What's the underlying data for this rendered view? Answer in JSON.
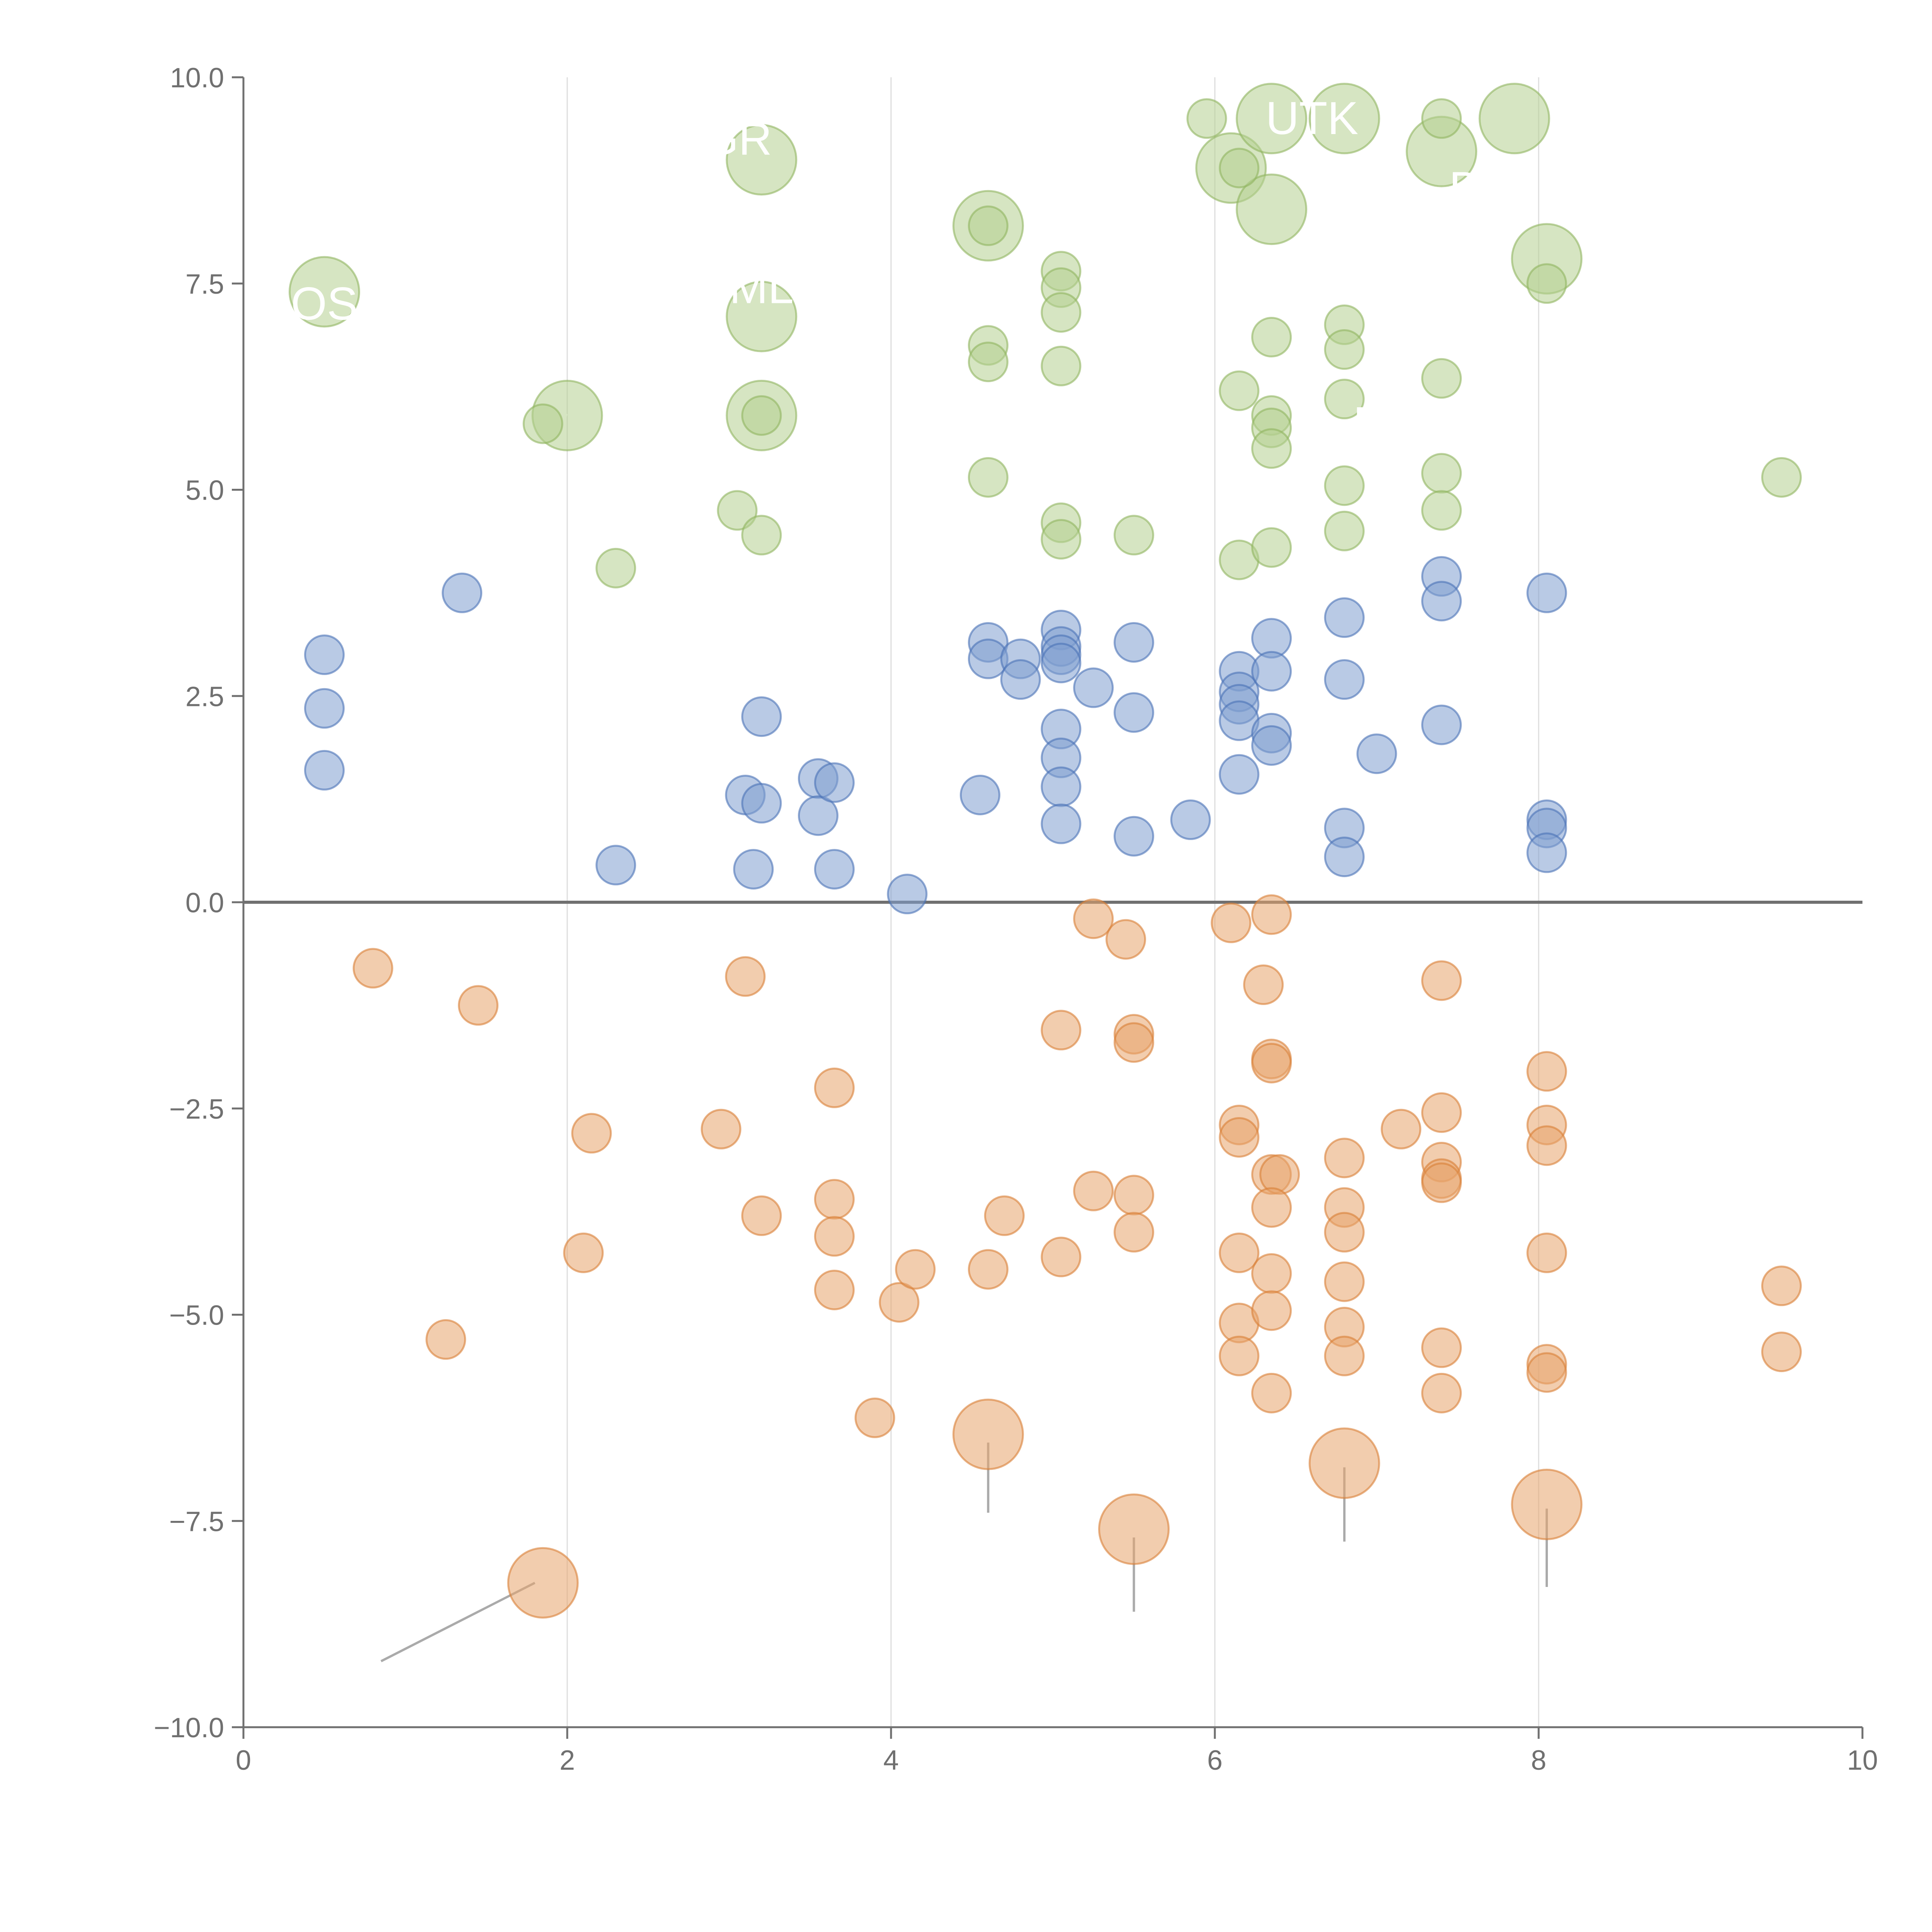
{
  "chart_data": {
    "type": "scatter",
    "title": "",
    "xlabel": "",
    "ylabel": "",
    "xlim": [
      0,
      10
    ],
    "ylim": [
      -10,
      10
    ],
    "xticks": [
      "0",
      "2",
      "4",
      "6",
      "8",
      "10"
    ],
    "yticks": [
      "−10.0",
      "−7.5",
      "−5.0",
      "−2.5",
      "0.0",
      "2.5",
      "5.0",
      "7.5",
      "10.0"
    ],
    "tick_values_x": [
      0,
      2,
      4,
      6,
      8,
      10
    ],
    "tick_values_y": [
      -10,
      -7.5,
      -5,
      -2.5,
      0,
      2.5,
      5,
      7.5,
      10
    ],
    "vertical_gridlines_at": [
      2,
      4,
      6,
      8
    ],
    "zero_line_y": 0,
    "series": [
      {
        "name": "green",
        "color": "#b5cf8f",
        "points": [
          [
            0.5,
            7.4,
            "L"
          ],
          [
            2.0,
            5.9,
            "L"
          ],
          [
            3.2,
            9.0,
            "L"
          ],
          [
            3.2,
            7.1,
            "L"
          ],
          [
            3.2,
            5.9,
            "L"
          ],
          [
            4.6,
            8.2,
            "L"
          ],
          [
            6.1,
            8.9,
            "L"
          ],
          [
            6.35,
            9.5,
            "L"
          ],
          [
            6.35,
            8.4,
            "L"
          ],
          [
            6.8,
            9.5,
            "L"
          ],
          [
            7.4,
            9.1,
            "L"
          ],
          [
            7.85,
            9.5,
            "L"
          ],
          [
            8.05,
            7.8,
            "L"
          ],
          [
            1.85,
            5.8,
            "S"
          ],
          [
            3.05,
            4.75,
            "S"
          ],
          [
            3.2,
            4.45,
            "S"
          ],
          [
            3.2,
            5.9,
            "S"
          ],
          [
            2.3,
            4.05,
            "S"
          ],
          [
            4.6,
            8.2,
            "S"
          ],
          [
            4.6,
            6.75,
            "S"
          ],
          [
            4.6,
            6.55,
            "S"
          ],
          [
            4.6,
            5.15,
            "S"
          ],
          [
            5.05,
            7.65,
            "S"
          ],
          [
            5.05,
            7.45,
            "S"
          ],
          [
            5.05,
            7.15,
            "S"
          ],
          [
            5.05,
            6.5,
            "S"
          ],
          [
            5.05,
            4.6,
            "S"
          ],
          [
            5.05,
            4.4,
            "S"
          ],
          [
            5.5,
            4.45,
            "S"
          ],
          [
            5.95,
            9.5,
            "S"
          ],
          [
            6.15,
            8.9,
            "S"
          ],
          [
            6.15,
            6.2,
            "S"
          ],
          [
            6.15,
            4.15,
            "S"
          ],
          [
            6.35,
            6.85,
            "S"
          ],
          [
            6.35,
            5.9,
            "S"
          ],
          [
            6.35,
            5.75,
            "S"
          ],
          [
            6.35,
            5.5,
            "S"
          ],
          [
            6.35,
            4.3,
            "S"
          ],
          [
            6.8,
            7.0,
            "S"
          ],
          [
            6.8,
            6.7,
            "S"
          ],
          [
            6.8,
            6.1,
            "S"
          ],
          [
            6.8,
            5.05,
            "S"
          ],
          [
            6.8,
            4.5,
            "S"
          ],
          [
            7.4,
            9.5,
            "S"
          ],
          [
            7.4,
            6.35,
            "S"
          ],
          [
            7.4,
            5.2,
            "S"
          ],
          [
            7.4,
            4.75,
            "S"
          ],
          [
            8.05,
            7.5,
            "S"
          ],
          [
            9.5,
            5.15,
            "S"
          ]
        ]
      },
      {
        "name": "blue",
        "color": "#7f9fcf",
        "points": [
          [
            0.5,
            3.0
          ],
          [
            0.5,
            2.35
          ],
          [
            0.5,
            1.6
          ],
          [
            1.35,
            3.75
          ],
          [
            2.3,
            0.45
          ],
          [
            3.1,
            1.3
          ],
          [
            3.15,
            0.4
          ],
          [
            3.2,
            2.25
          ],
          [
            3.2,
            1.2
          ],
          [
            3.55,
            1.5
          ],
          [
            3.55,
            1.05
          ],
          [
            3.65,
            1.45
          ],
          [
            3.65,
            0.4
          ],
          [
            4.1,
            0.1
          ],
          [
            4.55,
            1.3
          ],
          [
            4.6,
            3.15
          ],
          [
            4.6,
            2.95
          ],
          [
            4.8,
            2.95
          ],
          [
            4.8,
            2.7
          ],
          [
            5.05,
            3.3
          ],
          [
            5.05,
            3.1
          ],
          [
            5.05,
            3.0
          ],
          [
            5.05,
            2.9
          ],
          [
            5.05,
            2.1
          ],
          [
            5.05,
            1.75
          ],
          [
            5.05,
            1.4
          ],
          [
            5.05,
            0.95
          ],
          [
            5.25,
            2.6
          ],
          [
            5.5,
            3.15
          ],
          [
            5.5,
            2.3
          ],
          [
            5.5,
            0.8
          ],
          [
            5.85,
            1.0
          ],
          [
            6.15,
            2.8
          ],
          [
            6.15,
            2.55
          ],
          [
            6.15,
            2.4
          ],
          [
            6.15,
            2.2
          ],
          [
            6.15,
            1.55
          ],
          [
            6.35,
            3.2
          ],
          [
            6.35,
            2.8
          ],
          [
            6.35,
            2.05
          ],
          [
            6.35,
            1.9
          ],
          [
            6.8,
            3.45
          ],
          [
            6.8,
            2.7
          ],
          [
            6.8,
            0.9
          ],
          [
            6.8,
            0.55
          ],
          [
            7.0,
            1.8
          ],
          [
            7.4,
            3.95
          ],
          [
            7.4,
            3.65
          ],
          [
            7.4,
            2.15
          ],
          [
            8.05,
            3.75
          ],
          [
            8.05,
            1.0
          ],
          [
            8.05,
            0.9
          ],
          [
            8.05,
            0.6
          ]
        ]
      },
      {
        "name": "orange",
        "color": "#e8a46b",
        "points": [
          [
            0.8,
            -0.8,
            "S"
          ],
          [
            1.45,
            -1.25,
            "S"
          ],
          [
            2.15,
            -2.8,
            "S"
          ],
          [
            2.1,
            -4.25,
            "S"
          ],
          [
            1.25,
            -5.3,
            "S"
          ],
          [
            2.95,
            -2.75,
            "S"
          ],
          [
            3.1,
            -0.9,
            "S"
          ],
          [
            3.2,
            -3.8,
            "S"
          ],
          [
            3.65,
            -2.25,
            "S"
          ],
          [
            3.65,
            -3.6,
            "S"
          ],
          [
            3.65,
            -4.05,
            "S"
          ],
          [
            3.65,
            -4.7,
            "S"
          ],
          [
            3.9,
            -6.25,
            "S"
          ],
          [
            4.05,
            -4.85,
            "S"
          ],
          [
            4.15,
            -4.45,
            "S"
          ],
          [
            4.6,
            -4.45,
            "S"
          ],
          [
            4.7,
            -3.8,
            "S"
          ],
          [
            5.05,
            -1.55,
            "S"
          ],
          [
            5.05,
            -4.3,
            "S"
          ],
          [
            5.25,
            -0.2,
            "S"
          ],
          [
            5.25,
            -3.5,
            "S"
          ],
          [
            5.45,
            -0.45,
            "S"
          ],
          [
            5.5,
            -1.6,
            "S"
          ],
          [
            5.5,
            -1.7,
            "S"
          ],
          [
            5.5,
            -3.55,
            "S"
          ],
          [
            5.5,
            -4.0,
            "S"
          ],
          [
            6.1,
            -0.25,
            "S"
          ],
          [
            6.15,
            -2.7,
            "S"
          ],
          [
            6.15,
            -2.85,
            "S"
          ],
          [
            6.15,
            -4.25,
            "S"
          ],
          [
            6.15,
            -5.1,
            "S"
          ],
          [
            6.15,
            -5.5,
            "S"
          ],
          [
            6.3,
            -1.0,
            "S"
          ],
          [
            6.35,
            -0.15,
            "S"
          ],
          [
            6.35,
            -1.9,
            "S"
          ],
          [
            6.35,
            -1.95,
            "S"
          ],
          [
            6.35,
            -3.3,
            "S"
          ],
          [
            6.4,
            -3.3,
            "S"
          ],
          [
            6.35,
            -3.7,
            "S"
          ],
          [
            6.35,
            -4.5,
            "S"
          ],
          [
            6.35,
            -4.95,
            "S"
          ],
          [
            6.35,
            -5.95,
            "S"
          ],
          [
            6.8,
            -3.1,
            "S"
          ],
          [
            6.8,
            -3.7,
            "S"
          ],
          [
            6.8,
            -4.0,
            "S"
          ],
          [
            6.8,
            -4.6,
            "S"
          ],
          [
            6.8,
            -5.15,
            "S"
          ],
          [
            6.8,
            -5.5,
            "S"
          ],
          [
            7.15,
            -2.75,
            "S"
          ],
          [
            7.4,
            -0.95,
            "S"
          ],
          [
            7.4,
            -2.55,
            "S"
          ],
          [
            7.4,
            -3.15,
            "S"
          ],
          [
            7.4,
            -3.35,
            "S"
          ],
          [
            7.4,
            -3.4,
            "S"
          ],
          [
            7.4,
            -5.4,
            "S"
          ],
          [
            7.4,
            -5.95,
            "S"
          ],
          [
            8.05,
            -2.05,
            "S"
          ],
          [
            8.05,
            -2.7,
            "S"
          ],
          [
            8.05,
            -2.95,
            "S"
          ],
          [
            8.05,
            -4.25,
            "S"
          ],
          [
            8.05,
            -5.6,
            "S"
          ],
          [
            8.05,
            -5.7,
            "S"
          ],
          [
            9.5,
            -4.65,
            "S"
          ],
          [
            9.5,
            -5.45,
            "S"
          ],
          [
            1.85,
            -8.25,
            "L"
          ],
          [
            4.6,
            -6.45,
            "L"
          ],
          [
            5.5,
            -7.6,
            "L"
          ],
          [
            6.8,
            -6.8,
            "L"
          ],
          [
            8.05,
            -7.3,
            "L"
          ]
        ]
      }
    ],
    "annotations": [
      {
        "text": "GR",
        "x": 3.05,
        "y": 9.25
      },
      {
        "text": "UTK",
        "x": 6.6,
        "y": 9.5
      },
      {
        "text": "D",
        "x": 7.55,
        "y": 8.65
      },
      {
        "text": "OS",
        "x": 0.5,
        "y": 7.25
      },
      {
        "text": "ML",
        "x": 3.2,
        "y": 7.45
      },
      {
        "text": "P",
        "x": 6.95,
        "y": 5.8
      }
    ],
    "leader_lines": [
      {
        "color": "#ffffff",
        "from": [
          1.95,
          8.9
        ],
        "to": [
          1.95,
          8.9
        ]
      },
      {
        "color": "#ffffff",
        "from": [
          3.2,
          9.05
        ],
        "to": [
          3.0,
          9.0
        ]
      },
      {
        "color": "#ffffff",
        "from": [
          6.05,
          9.5
        ],
        "to": [
          6.2,
          9.5
        ]
      },
      {
        "color": "#ffffff",
        "from": [
          7.85,
          9.5
        ],
        "to": [
          7.65,
          9.5
        ]
      },
      {
        "color": "#ffffff",
        "from": [
          7.4,
          9.05
        ],
        "to": [
          7.45,
          8.95
        ]
      },
      {
        "color": "#ffffff",
        "from": [
          8.05,
          7.8
        ],
        "to": [
          8.25,
          7.8
        ]
      },
      {
        "color": "#ffffff",
        "from": [
          6.35,
          8.4
        ],
        "to": [
          6.45,
          8.1
        ]
      },
      {
        "color": "#ffffff",
        "from": [
          6.15,
          8.9
        ],
        "to": [
          6.1,
          8.6
        ]
      },
      {
        "color": "#ffffff",
        "from": [
          4.6,
          8.2
        ],
        "to": [
          4.4,
          8.35
        ]
      },
      {
        "color": "#ffffff",
        "from": [
          6.8,
          7.0
        ],
        "to": [
          6.85,
          6.75
        ]
      },
      {
        "color": "#ffffff",
        "from": [
          2.0,
          5.9
        ],
        "to": [
          1.8,
          6.1
        ]
      },
      {
        "color": "#ffffff",
        "from": [
          3.2,
          5.9
        ],
        "to": [
          3.3,
          5.6
        ]
      },
      {
        "color": "#ffffff",
        "from": [
          3.05,
          4.75
        ],
        "to": [
          2.85,
          4.9
        ]
      },
      {
        "color": "#ffffff",
        "from": [
          0.5,
          7.4
        ],
        "to": [
          0.7,
          7.4
        ]
      },
      {
        "color": "#ffffff",
        "from": [
          3.2,
          7.1
        ],
        "to": [
          3.2,
          7.4
        ]
      },
      {
        "color": "#aaaaaa",
        "from": [
          1.8,
          -8.25
        ],
        "to": [
          0.85,
          -9.2
        ]
      },
      {
        "color": "#aaaaaa",
        "from": [
          4.6,
          -6.55
        ],
        "to": [
          4.6,
          -7.4
        ]
      },
      {
        "color": "#aaaaaa",
        "from": [
          5.5,
          -7.7
        ],
        "to": [
          5.5,
          -8.6
        ]
      },
      {
        "color": "#aaaaaa",
        "from": [
          6.8,
          -6.85
        ],
        "to": [
          6.8,
          -7.75
        ]
      },
      {
        "color": "#aaaaaa",
        "from": [
          8.05,
          -7.35
        ],
        "to": [
          8.05,
          -8.3
        ]
      }
    ]
  }
}
